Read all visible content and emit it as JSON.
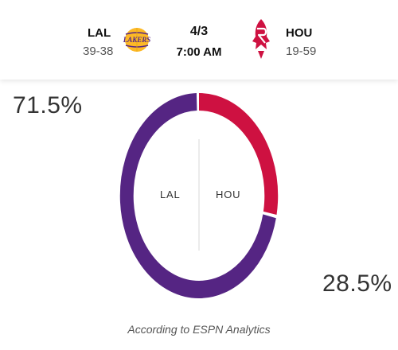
{
  "matchup": {
    "away": {
      "abbr": "LAL",
      "record": "39-38",
      "logo_icon": "lakers-logo-icon",
      "logo_text": "LAKERS",
      "color": "#552583",
      "accent": "#FDB927"
    },
    "home": {
      "abbr": "HOU",
      "record": "19-59",
      "logo_icon": "rockets-logo-icon",
      "color": "#CE1141"
    },
    "date": "4/3",
    "time": "7:00 AM"
  },
  "matchup_predictor": {
    "away_pct_label": "71.5%",
    "home_pct_label": "28.5%",
    "away_fraction": 0.715,
    "home_fraction": 0.285,
    "away_ring_label": "LAL",
    "home_ring_label": "HOU"
  },
  "footer": {
    "source": "According to ESPN Analytics"
  },
  "colors": {
    "divider": "#cccccc",
    "text": "#333333"
  }
}
